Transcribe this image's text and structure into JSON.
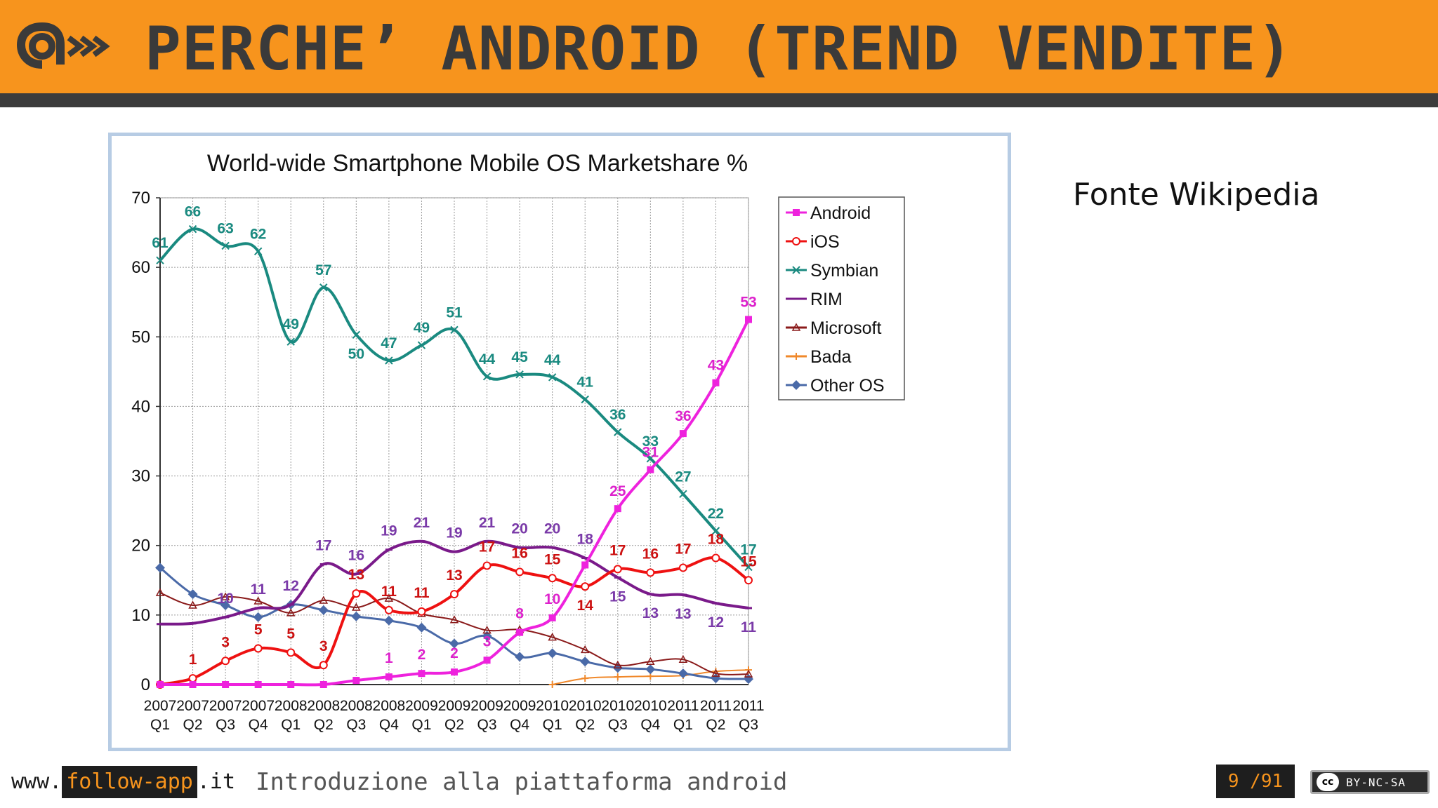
{
  "header": {
    "title": "PERCHE’ ANDROID (TREND VENDITE)",
    "accent_color": "#f7941d",
    "bar_color": "#3c3c3c",
    "logo_icon": "follow-app-logo"
  },
  "side_note": "Fonte Wikipedia",
  "footer": {
    "site_prefix": "www.",
    "site_brand": "follow-app",
    "site_suffix": ".it",
    "course_title": "Introduzione alla piattaforma android",
    "page_current": "9",
    "page_total": "/91",
    "license_icon": "cc",
    "license_label": "BY-NC-SA"
  },
  "chart_data": {
    "type": "line",
    "title": "World-wide Smartphone Mobile OS Marketshare %",
    "xlabel": "",
    "ylabel": "",
    "ylim": [
      0,
      70
    ],
    "yticks": [
      0,
      10,
      20,
      30,
      40,
      50,
      60,
      70
    ],
    "grid": true,
    "legend_position": "top-right",
    "categories": [
      [
        "2007",
        "Q1"
      ],
      [
        "2007",
        "Q2"
      ],
      [
        "2007",
        "Q3"
      ],
      [
        "2007",
        "Q4"
      ],
      [
        "2008",
        "Q1"
      ],
      [
        "2008",
        "Q2"
      ],
      [
        "2008",
        "Q3"
      ],
      [
        "2008",
        "Q4"
      ],
      [
        "2009",
        "Q1"
      ],
      [
        "2009",
        "Q2"
      ],
      [
        "2009",
        "Q3"
      ],
      [
        "2009",
        "Q4"
      ],
      [
        "2010",
        "Q1"
      ],
      [
        "2010",
        "Q2"
      ],
      [
        "2010",
        "Q3"
      ],
      [
        "2010",
        "Q4"
      ],
      [
        "2011",
        "Q1"
      ],
      [
        "2011",
        "Q2"
      ],
      [
        "2011",
        "Q3"
      ]
    ],
    "series": [
      {
        "name": "Android",
        "color": "#ee22dd",
        "label_color": "#dd22cc",
        "marker": "square",
        "values": [
          0,
          0,
          0,
          0,
          0,
          0,
          0.6,
          1.1,
          1.6,
          1.8,
          3.5,
          7.5,
          9.6,
          17.2,
          25.3,
          30.9,
          36.1,
          43.4,
          52.5
        ],
        "labels": [
          null,
          null,
          null,
          null,
          null,
          null,
          null,
          "1",
          "2",
          "2",
          "3",
          "8",
          "10",
          null,
          "25",
          "31",
          "36",
          "43",
          "53"
        ]
      },
      {
        "name": "iOS",
        "color": "#ee1111",
        "label_color": "#cc1111",
        "marker": "circle",
        "values": [
          0,
          0.9,
          3.4,
          5.2,
          4.6,
          2.8,
          13.1,
          10.7,
          10.5,
          13.0,
          17.1,
          16.2,
          15.3,
          14.1,
          16.6,
          16.1,
          16.8,
          18.2,
          15.0
        ],
        "labels": [
          null,
          "1",
          "3",
          "5",
          "5",
          "3",
          "13",
          "11",
          "11",
          "13",
          "17",
          "16",
          "15",
          "14",
          "17",
          "16",
          "17",
          "18",
          "15"
        ]
      },
      {
        "name": "Symbian",
        "color": "#1a8a80",
        "label_color": "#1a8a80",
        "marker": "x",
        "values": [
          61,
          65.5,
          63.1,
          62.3,
          49.3,
          57.1,
          50.3,
          46.6,
          48.8,
          51.0,
          44.3,
          44.6,
          44.2,
          41.0,
          36.3,
          32.5,
          27.4,
          22.1,
          16.9
        ],
        "labels": [
          "61",
          "66",
          "63",
          "62",
          "49",
          "57",
          "50",
          "47",
          "49",
          "51",
          "44",
          "45",
          "44",
          "41",
          "36",
          "33",
          "27",
          "22",
          "17"
        ]
      },
      {
        "name": "RIM",
        "color": "#7a1a8a",
        "label_color": "#7a3aa8",
        "marker": "dash",
        "values": [
          8.7,
          8.8,
          9.7,
          11.0,
          11.5,
          17.3,
          15.9,
          19.4,
          20.6,
          19.1,
          20.6,
          19.7,
          19.7,
          18.2,
          15.4,
          13.0,
          12.9,
          11.7,
          11.0
        ],
        "labels": [
          null,
          null,
          "10",
          "11",
          "12",
          "17",
          "16",
          "19",
          "21",
          "19",
          "21",
          "20",
          "20",
          "18",
          "15",
          "13",
          "13",
          "12",
          "11"
        ]
      },
      {
        "name": "Microsoft",
        "color": "#8a1a1a",
        "label_color": "#8a1a1a",
        "marker": "triangle",
        "values": [
          13.2,
          11.4,
          12.6,
          12.0,
          10.3,
          12.1,
          11.1,
          12.4,
          10.2,
          9.3,
          7.8,
          7.9,
          6.8,
          5.0,
          2.8,
          3.3,
          3.6,
          1.6,
          1.5
        ],
        "labels": []
      },
      {
        "name": "Bada",
        "color": "#f0882a",
        "label_color": "#f0882a",
        "marker": "plus",
        "values": [
          null,
          null,
          null,
          null,
          null,
          null,
          null,
          null,
          null,
          null,
          null,
          null,
          0,
          0.9,
          1.1,
          1.2,
          1.3,
          1.9,
          2.1
        ],
        "labels": []
      },
      {
        "name": "Other OS",
        "color": "#4a6aa8",
        "label_color": "#4a6aa8",
        "marker": "diamond",
        "values": [
          16.8,
          13.0,
          11.4,
          9.7,
          11.5,
          10.7,
          9.8,
          9.2,
          8.2,
          5.9,
          7.0,
          4.0,
          4.5,
          3.3,
          2.4,
          2.2,
          1.6,
          0.9,
          0.8
        ],
        "labels": []
      }
    ]
  }
}
